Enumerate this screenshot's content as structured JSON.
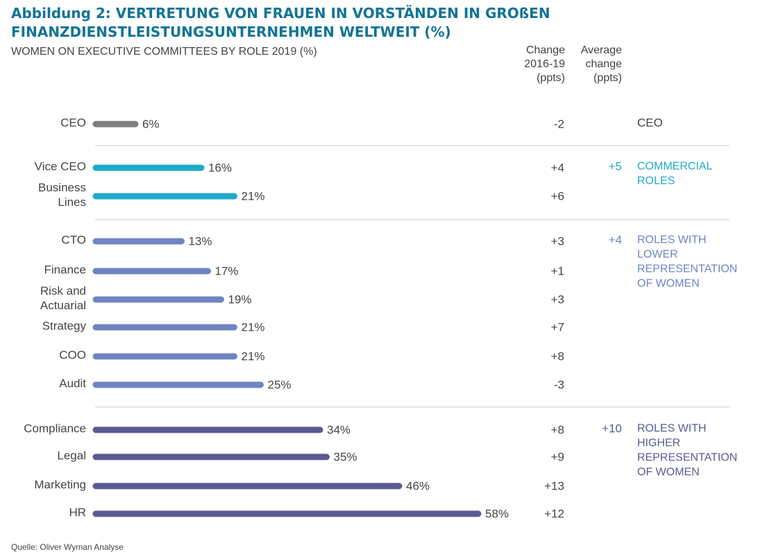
{
  "title": "Abbildung 2: VERTRETUNG VON FRAUEN IN VORSTÄNDEN IN GROßEN FINANZDIENSTLEISTUNGSUNTERNEHMEN WELTWEIT (%)",
  "subtitle": "WOMEN ON EXECUTIVE COMMITTEES BY ROLE 2019 (%)",
  "columns": {
    "change": [
      "Change",
      "2016-19",
      "(ppts)"
    ],
    "average": [
      "Average",
      "change",
      "(ppts)"
    ]
  },
  "source": "Quelle: Oliver Wyman Analyse",
  "colors": {
    "title": "#127495",
    "ceo": "#7f7f7f",
    "commercial": "#1fa9c9",
    "lower": "#6f84c2",
    "higher": "#5a5a92",
    "divider": "#cfcfcf"
  },
  "chart_data": {
    "type": "bar",
    "orientation": "horizontal",
    "unit": "%",
    "xlim": [
      0,
      60
    ],
    "grid": false,
    "groups": [
      {
        "key": "ceo",
        "label": [
          "CEO"
        ],
        "average_change": "",
        "color": "#7f7f7f",
        "rows": [
          {
            "category": [
              "CEO"
            ],
            "value": 6,
            "value_label": "6%",
            "change": "-2"
          }
        ]
      },
      {
        "key": "commercial",
        "label": [
          "COMMERCIAL",
          "ROLES"
        ],
        "average_change": "+5",
        "color": "#1fa9c9",
        "rows": [
          {
            "category": [
              "Vice CEO"
            ],
            "value": 16,
            "value_label": "16%",
            "change": "+4"
          },
          {
            "category": [
              "Business",
              "Lines"
            ],
            "value": 21,
            "value_label": "21%",
            "change": "+6"
          }
        ]
      },
      {
        "key": "lower",
        "label": [
          "ROLES WITH",
          "LOWER",
          "REPRESENTATION",
          "OF WOMEN"
        ],
        "average_change": "+4",
        "color": "#6f84c2",
        "rows": [
          {
            "category": [
              "CTO"
            ],
            "value": 13,
            "value_label": "13%",
            "change": "+3"
          },
          {
            "category": [
              "Finance"
            ],
            "value": 17,
            "value_label": "17%",
            "change": "+1"
          },
          {
            "category": [
              "Risk and",
              "Actuarial"
            ],
            "value": 19,
            "value_label": "19%",
            "change": "+3"
          },
          {
            "category": [
              "Strategy"
            ],
            "value": 21,
            "value_label": "21%",
            "change": "+7"
          },
          {
            "category": [
              "COO"
            ],
            "value": 21,
            "value_label": "21%",
            "change": "+8"
          },
          {
            "category": [
              "Audit"
            ],
            "value": 25,
            "value_label": "25%",
            "change": "-3"
          }
        ]
      },
      {
        "key": "higher",
        "label": [
          "ROLES WITH",
          "HIGHER",
          "REPRESENTATION",
          "OF WOMEN"
        ],
        "average_change": "+10",
        "color": "#5a5a92",
        "rows": [
          {
            "category": [
              "Compliance"
            ],
            "value": 34,
            "value_label": "34%",
            "change": "+8"
          },
          {
            "category": [
              "Legal"
            ],
            "value": 35,
            "value_label": "35%",
            "change": "+9"
          },
          {
            "category": [
              "Marketing"
            ],
            "value": 46,
            "value_label": "46%",
            "change": "+13"
          },
          {
            "category": [
              "HR"
            ],
            "value": 58,
            "value_label": "58%",
            "change": "+12"
          }
        ]
      }
    ]
  }
}
